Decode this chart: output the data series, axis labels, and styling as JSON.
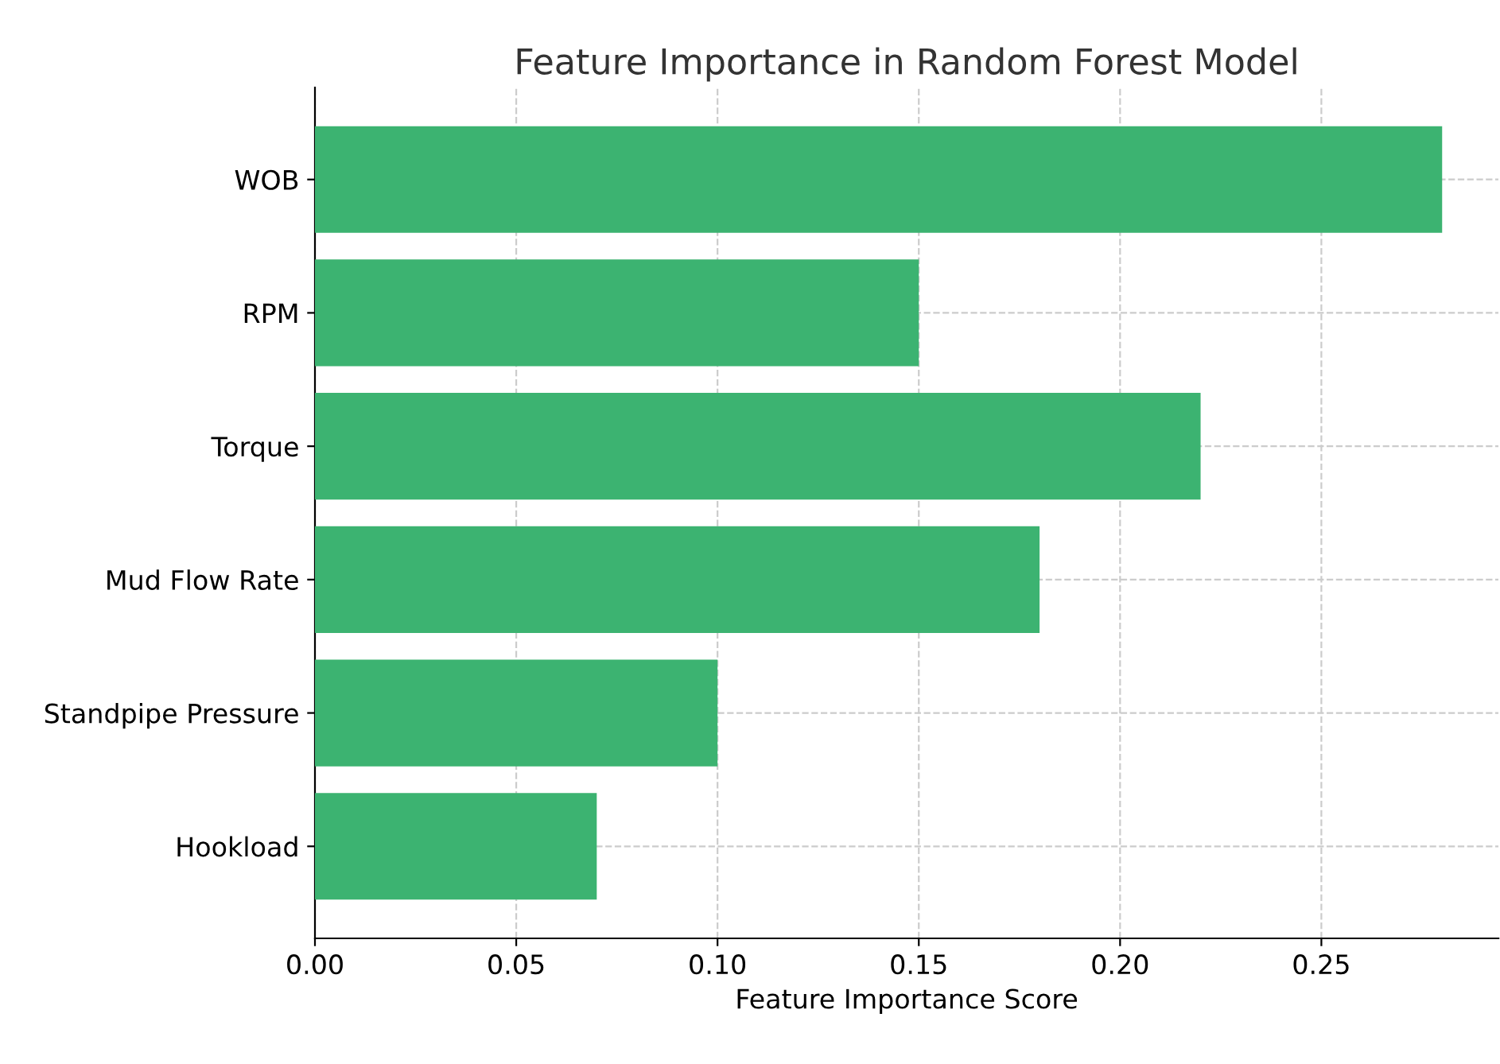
{
  "chart_data": {
    "type": "bar",
    "orientation": "horizontal",
    "title": "Feature Importance in Random Forest Model",
    "xlabel": "Feature Importance Score",
    "categories": [
      "WOB",
      "RPM",
      "Torque",
      "Mud Flow Rate",
      "Standpipe Pressure",
      "Hookload"
    ],
    "values": [
      0.28,
      0.15,
      0.22,
      0.18,
      0.1,
      0.07
    ],
    "color": "#3cb371",
    "xlim": [
      0,
      0.294
    ],
    "xticks": [
      {
        "value": 0,
        "label": "0.00"
      },
      {
        "value": 0.05,
        "label": "0.05"
      },
      {
        "value": 0.1,
        "label": "0.10"
      },
      {
        "value": 0.15,
        "label": "0.15"
      },
      {
        "value": 0.2,
        "label": "0.20"
      },
      {
        "value": 0.25,
        "label": "0.25"
      }
    ],
    "grid": true
  }
}
